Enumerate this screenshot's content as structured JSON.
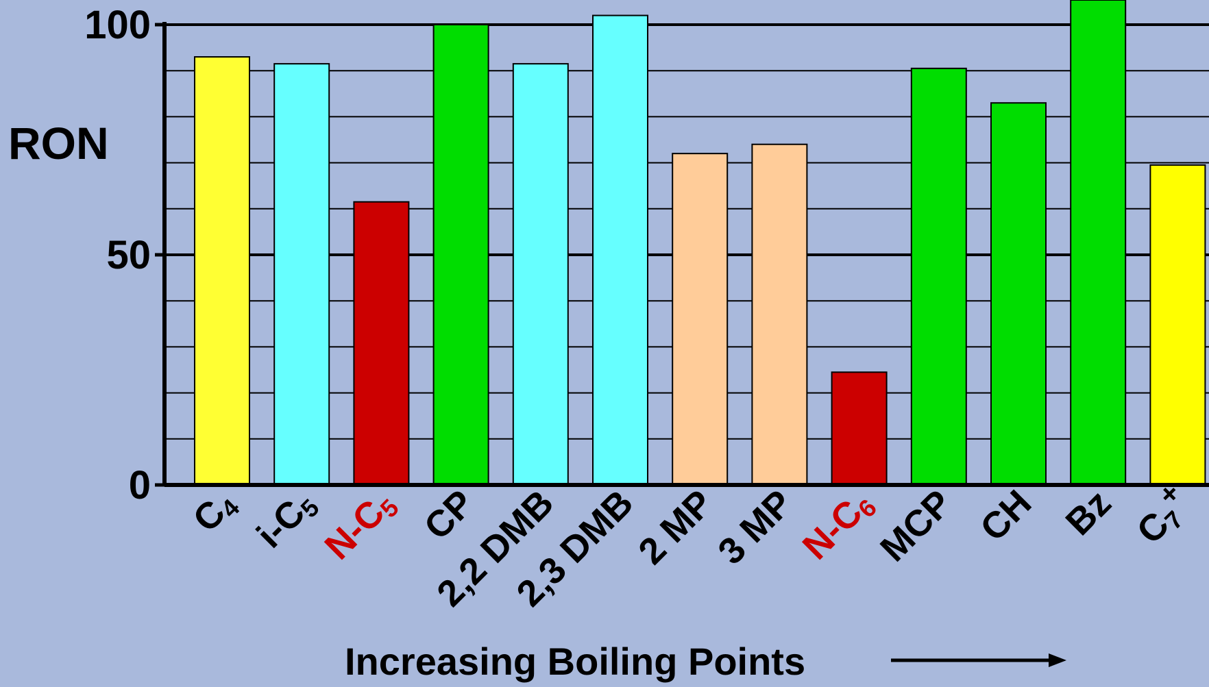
{
  "chart_data": {
    "type": "bar",
    "ylabel": "RON",
    "xlabel": "Increasing Boiling Points",
    "ylim": [
      0,
      100
    ],
    "y_ticks": [
      "0",
      "50",
      "100"
    ],
    "grid": true,
    "categories": [
      {
        "base": "C",
        "sub": "4",
        "sup": "",
        "color": "#000000"
      },
      {
        "base": "i-C",
        "sub": "5",
        "sup": "",
        "color": "#000000"
      },
      {
        "base": "N-C",
        "sub": "5",
        "sup": "",
        "color": "#cc0000"
      },
      {
        "base": "CP",
        "sub": "",
        "sup": "",
        "color": "#000000"
      },
      {
        "base": "2,2 DMB",
        "sub": "",
        "sup": "",
        "color": "#000000"
      },
      {
        "base": "2,3 DMB",
        "sub": "",
        "sup": "",
        "color": "#000000"
      },
      {
        "base": "2 MP",
        "sub": "",
        "sup": "",
        "color": "#000000"
      },
      {
        "base": "3 MP",
        "sub": "",
        "sup": "",
        "color": "#000000"
      },
      {
        "base": "N-C",
        "sub": "6",
        "sup": "",
        "color": "#cc0000"
      },
      {
        "base": "MCP",
        "sub": "",
        "sup": "",
        "color": "#000000"
      },
      {
        "base": "CH",
        "sub": "",
        "sup": "",
        "color": "#000000"
      },
      {
        "base": "Bz",
        "sub": "",
        "sup": "",
        "color": "#000000"
      },
      {
        "base": "C",
        "sub": "7",
        "sup": "+",
        "color": "#000000"
      }
    ],
    "values": [
      93,
      91.5,
      61.5,
      100,
      91.5,
      102,
      72,
      74,
      24.5,
      90.5,
      83,
      106,
      69.5
    ],
    "bar_colors": [
      "#ffff33",
      "#66ffff",
      "#cc0000",
      "#00dd00",
      "#66ffff",
      "#66ffff",
      "#ffcc99",
      "#ffcc99",
      "#cc0000",
      "#00dd00",
      "#00dd00",
      "#00dd00",
      "#ffff00"
    ]
  },
  "colors": {
    "background": "#a9b9dc",
    "axis": "#000000",
    "red_label": "#cc0000"
  }
}
